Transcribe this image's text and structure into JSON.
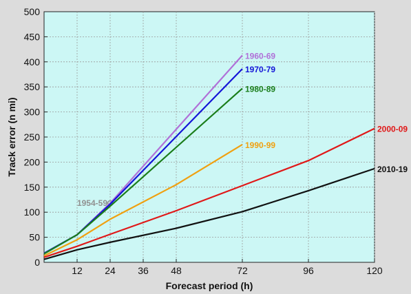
{
  "chart_data": {
    "type": "line",
    "title": "",
    "xlabel": "Forecast period (h)",
    "ylabel": "Track error (n mi)",
    "xlim": [
      0,
      120
    ],
    "ylim": [
      0,
      500
    ],
    "xticks": [
      12,
      24,
      36,
      48,
      72,
      96,
      120
    ],
    "yticks": [
      0,
      50,
      100,
      150,
      200,
      250,
      300,
      350,
      400,
      450,
      500
    ],
    "grid": true,
    "background": "#ccf7f5",
    "series": [
      {
        "name": "1954-59",
        "color": "#909090",
        "x": [
          24
        ],
        "y": [
          118
        ],
        "marker": true
      },
      {
        "name": "1960-69",
        "color": "#b070d8",
        "x": [
          0,
          12,
          24,
          72
        ],
        "y": [
          18,
          55,
          118,
          413
        ]
      },
      {
        "name": "1970-79",
        "color": "#1414d8",
        "x": [
          0,
          12,
          24,
          72
        ],
        "y": [
          18,
          55,
          116,
          386
        ]
      },
      {
        "name": "1980-89",
        "color": "#1a7d1a",
        "x": [
          0,
          12,
          24,
          72
        ],
        "y": [
          17,
          55,
          112,
          347
        ]
      },
      {
        "name": "1990-99",
        "color": "#f0a010",
        "x": [
          0,
          12,
          24,
          48,
          72
        ],
        "y": [
          13,
          45,
          86,
          155,
          235
        ]
      },
      {
        "name": "2000-09",
        "color": "#e01818",
        "x": [
          0,
          12,
          24,
          48,
          72,
          96,
          120
        ],
        "y": [
          10,
          32,
          56,
          103,
          153,
          203,
          267
        ]
      },
      {
        "name": "2010-19",
        "color": "#111111",
        "x": [
          0,
          12,
          24,
          48,
          72,
          96,
          120
        ],
        "y": [
          6,
          25,
          40,
          68,
          101,
          143,
          187
        ]
      }
    ]
  }
}
